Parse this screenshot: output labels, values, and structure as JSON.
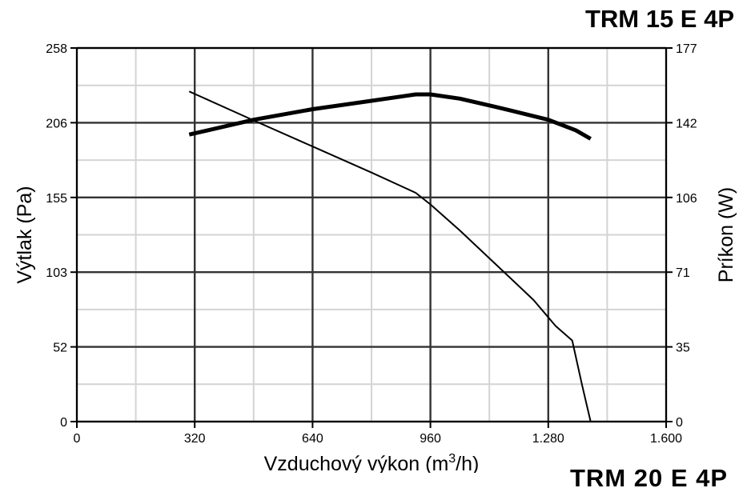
{
  "chart_title": "TRM 15 E 4P",
  "next_chart_title_partial": "TRM 20 E 4P",
  "chart_data": {
    "type": "line",
    "xlabel": "Vzduchový výkon (m3/h)",
    "xlabel_main": "Vzduchový výkon (m",
    "xlabel_sup": "3",
    "xlabel_end": "/h)",
    "ylabel": "Výtlak (Pa)",
    "y2label": "Príkon (W)",
    "xlim": [
      0,
      1600
    ],
    "ylim": [
      0,
      258
    ],
    "y2lim": [
      0,
      177
    ],
    "x_ticks": [
      {
        "value": 0,
        "label": "0"
      },
      {
        "value": 320,
        "label": "320"
      },
      {
        "value": 640,
        "label": "640"
      },
      {
        "value": 960,
        "label": "960"
      },
      {
        "value": 1280,
        "label": "1.280"
      },
      {
        "value": 1600,
        "label": "1.600"
      }
    ],
    "y_ticks": [
      {
        "value": 0,
        "label": "0"
      },
      {
        "value": 51.6,
        "label": "52"
      },
      {
        "value": 103.2,
        "label": "103"
      },
      {
        "value": 154.8,
        "label": "155"
      },
      {
        "value": 206.4,
        "label": "206"
      },
      {
        "value": 258,
        "label": "258"
      }
    ],
    "y2_ticks": [
      {
        "value": 0,
        "label": "0"
      },
      {
        "value": 35.4,
        "label": "35"
      },
      {
        "value": 70.8,
        "label": "71"
      },
      {
        "value": 106.2,
        "label": "106"
      },
      {
        "value": 141.6,
        "label": "142"
      },
      {
        "value": 177,
        "label": "177"
      }
    ],
    "grid": true,
    "series": [
      {
        "axis": "left",
        "style": "thin",
        "points": [
          [
            305,
            228
          ],
          [
            480,
            208
          ],
          [
            640,
            190
          ],
          [
            800,
            172
          ],
          [
            920,
            158
          ],
          [
            960,
            150
          ],
          [
            1040,
            132
          ],
          [
            1140,
            108
          ],
          [
            1240,
            84
          ],
          [
            1300,
            66
          ],
          [
            1345,
            56
          ],
          [
            1372,
            25
          ],
          [
            1395,
            0
          ]
        ]
      },
      {
        "axis": "right",
        "style": "thick",
        "points": [
          [
            305,
            136
          ],
          [
            480,
            143
          ],
          [
            640,
            148
          ],
          [
            800,
            152
          ],
          [
            920,
            155
          ],
          [
            960,
            155
          ],
          [
            1040,
            153
          ],
          [
            1140,
            149
          ],
          [
            1280,
            143
          ],
          [
            1355,
            138
          ],
          [
            1395,
            134
          ]
        ]
      }
    ]
  }
}
